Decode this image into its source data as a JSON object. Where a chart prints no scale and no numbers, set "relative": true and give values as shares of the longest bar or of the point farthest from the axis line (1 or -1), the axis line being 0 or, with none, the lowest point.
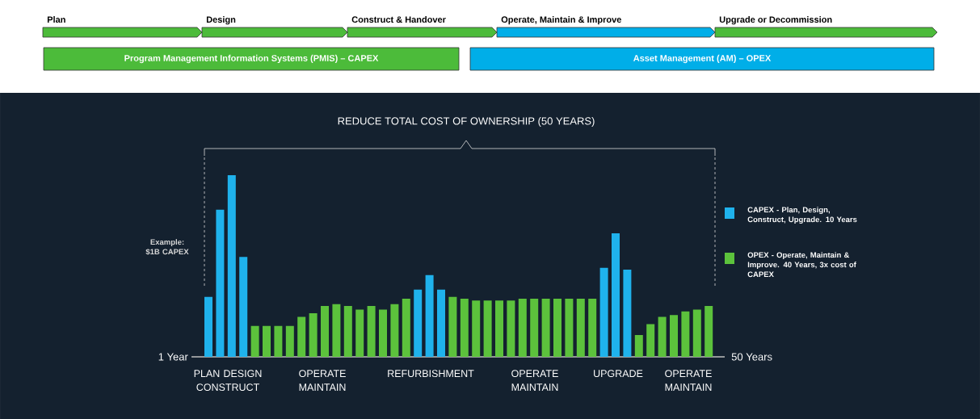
{
  "chart_data": [
    {
      "type": "other",
      "annotations": [
        "Plan",
        "Design",
        "Construct & Handover",
        "Operate, Maintain & Improve",
        "Upgrade or Decommission",
        "Program Management Information Systems (PMIS) – CAPEX",
        "Asset Management (AM) – OPEX"
      ]
    },
    {
      "type": "bar",
      "relative": true,
      "title": "REDUCE TOTAL COST OF OWNERSHIP (50 YEARS)",
      "categories": [
        null,
        null,
        null,
        null,
        null,
        null,
        null,
        null,
        null,
        null,
        null,
        null,
        null,
        null,
        null,
        null,
        null,
        null,
        null,
        null,
        null,
        null,
        null,
        null,
        null,
        null,
        null,
        null,
        null,
        null,
        null,
        null,
        null,
        null,
        null,
        null,
        null,
        null,
        null,
        null,
        null,
        null,
        null,
        null
      ],
      "values": [
        0.33,
        0.81,
        1,
        0.55,
        0.17,
        0.17,
        0.17,
        0.17,
        0.22,
        0.24,
        0.28,
        0.29,
        0.28,
        0.26,
        0.28,
        0.26,
        0.29,
        0.32,
        0.37,
        0.45,
        0.37,
        0.33,
        0.32,
        0.31,
        0.31,
        0.31,
        0.31,
        0.32,
        0.32,
        0.32,
        0.32,
        0.32,
        0.32,
        0.32,
        0.49,
        0.68,
        0.48,
        0.12,
        0.18,
        0.22,
        0.23,
        0.25,
        0.26,
        0.28
      ],
      "colors": [
        "#1fb2ec",
        "#1fb2ec",
        "#1fb2ec",
        "#1fb2ec",
        "#5cc23c",
        "#5cc23c",
        "#5cc23c",
        "#5cc23c",
        "#5cc23c",
        "#5cc23c",
        "#5cc23c",
        "#5cc23c",
        "#5cc23c",
        "#5cc23c",
        "#5cc23c",
        "#5cc23c",
        "#5cc23c",
        "#5cc23c",
        "#1fb2ec",
        "#1fb2ec",
        "#1fb2ec",
        "#5cc23c",
        "#5cc23c",
        "#5cc23c",
        "#5cc23c",
        "#5cc23c",
        "#5cc23c",
        "#5cc23c",
        "#5cc23c",
        "#5cc23c",
        "#5cc23c",
        "#5cc23c",
        "#5cc23c",
        "#5cc23c",
        "#1fb2ec",
        "#1fb2ec",
        "#1fb2ec",
        "#5cc23c",
        "#5cc23c",
        "#5cc23c",
        "#5cc23c",
        "#5cc23c",
        "#5cc23c",
        "#5cc23c"
      ],
      "annotations": [
        "Example: $1B CAPEX",
        "1 Year",
        "50 Years",
        "PLAN DESIGN CONSTRUCT",
        "OPERATE MAINTAIN",
        "REFURBISHMENT",
        "OPERATE MAINTAIN",
        "UPGRADE",
        "OPERATE MAINTAIN",
        "CAPEX - Plan, Design, Construct, Upgrade. 10 Years",
        "OPEX - Operate, Maintain & Improve. 40 Years, 3x cost of CAPEX"
      ]
    }
  ]
}
